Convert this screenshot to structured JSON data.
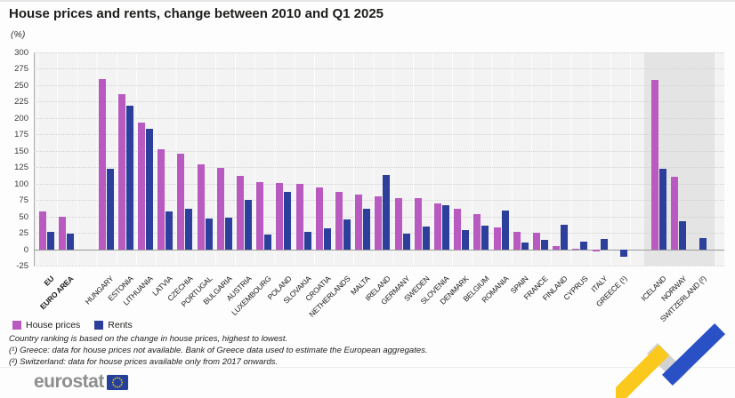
{
  "header": {
    "title": "House prices and rents, change between 2010 and Q1 2025",
    "unit": "(%)"
  },
  "legend": {
    "house_prices": "House prices",
    "rents": "Rents"
  },
  "colors": {
    "house_prices": "#b95ac1",
    "rents": "#2b3f9b",
    "efta_band": "#e4e4e4",
    "plot_background": "#f3f3f3",
    "ribbon_yellow": "#fbc81d",
    "ribbon_gray": "#d2d2d2",
    "ribbon_blue": "#2a50c6",
    "eu_flag_blue": "#24409a",
    "eu_flag_stars": "#ffcc00"
  },
  "footnotes": [
    "Country ranking is based on the change in house prices, highest to lowest.",
    "(¹) Greece: data for house prices not available. Bank of Greece data used to estimate the European aggregates.",
    "(²) Switzerland: data for house prices available only from 2017 onwards."
  ],
  "footer": {
    "brand": "eurostat"
  },
  "chart_data": {
    "type": "bar",
    "title": "House prices and rents, change between 2010 and Q1 2025",
    "xlabel": "",
    "ylabel": "(%)",
    "ylim": [
      -25,
      300
    ],
    "y_ticks": [
      300,
      275,
      250,
      225,
      200,
      175,
      150,
      125,
      100,
      75,
      50,
      25,
      0,
      -25
    ],
    "grid": "horizontal-dotted",
    "legend_position": "bottom-left",
    "categories": [
      "EU",
      "EURO AREA",
      "HUNGARY",
      "ESTONIA",
      "LITHUANIA",
      "LATVIA",
      "CZECHIA",
      "PORTUGAL",
      "BULGARIA",
      "AUSTRIA",
      "LUXEMBOURG",
      "POLAND",
      "SLOVAKIA",
      "CROATIA",
      "NETHERLANDS",
      "MALTA",
      "IRELAND",
      "GERMANY",
      "SWEDEN",
      "SLOVENIA",
      "DENMARK",
      "BELGIUM",
      "ROMANIA",
      "SPAIN",
      "FRANCE",
      "FINLAND",
      "CYPRUS",
      "ITALY",
      "GREECE (¹)",
      "ICELAND",
      "NORWAY",
      "SWITZERLAND (²)"
    ],
    "series": [
      {
        "name": "House prices",
        "values": [
          57,
          50,
          260,
          237,
          193,
          153,
          146,
          130,
          124,
          112,
          102,
          101,
          100,
          94,
          88,
          84,
          80,
          78,
          78,
          70,
          62,
          54,
          33,
          26,
          25,
          5,
          1,
          -4,
          null,
          258,
          110,
          null
        ]
      },
      {
        "name": "Rents",
        "values": [
          27,
          24,
          123,
          219,
          184,
          57,
          62,
          47,
          48,
          75,
          22,
          87,
          26,
          32,
          46,
          62,
          113,
          24,
          35,
          67,
          29,
          36,
          59,
          10,
          14,
          38,
          12,
          16,
          -12,
          122,
          43,
          17
        ]
      }
    ],
    "gap_before": [
      2,
      29
    ],
    "efta_categories": [
      "ICELAND",
      "NORWAY",
      "SWITZERLAND (²)"
    ],
    "bold_categories": [
      "EU",
      "EURO AREA"
    ]
  }
}
